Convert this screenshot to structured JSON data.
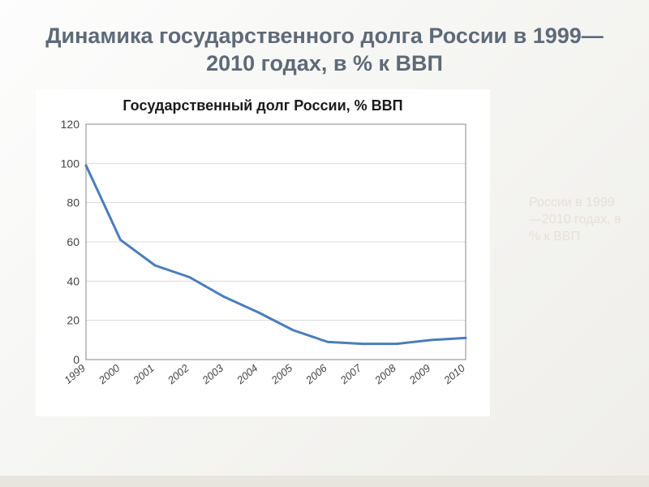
{
  "slide": {
    "title": "Динамика государственного долга России в 1999—2010 годах, в % к ВВП",
    "title_color": "#5e6a78",
    "title_fontsize": 27,
    "background_gradient": [
      "#fdfdfd",
      "#efeeea"
    ],
    "bottom_accent_color": "#e8e5de"
  },
  "watermark": {
    "text": "России в 1999—2010 годах, в % к ВВП",
    "color": "#e7e1d7"
  },
  "chart": {
    "type": "line",
    "title": "Государственный долг России, % ВВП",
    "title_fontsize": 18,
    "title_color": "#1a1a1a",
    "background_color": "#ffffff",
    "plot_border_color": "#878787",
    "grid_color": "#d9d9d9",
    "grid_on": true,
    "line_color": "#4a7ebb",
    "line_width": 3,
    "marker": "none",
    "ylim": [
      0,
      120
    ],
    "ytick_step": 20,
    "yticks": [
      0,
      20,
      40,
      60,
      80,
      100,
      120
    ],
    "x_labels": [
      "1999",
      "2000",
      "2001",
      "2002",
      "2003",
      "2004",
      "2005",
      "2006",
      "2007",
      "2008",
      "2009",
      "2010"
    ],
    "x_label_rotation": -40,
    "values": [
      99,
      61,
      48,
      42,
      32,
      24,
      15,
      9,
      8,
      8,
      10,
      11
    ],
    "aspect_width": 520,
    "aspect_height": 330,
    "axis_label_fontsize": 14,
    "xlabel_fontsize": 13
  }
}
